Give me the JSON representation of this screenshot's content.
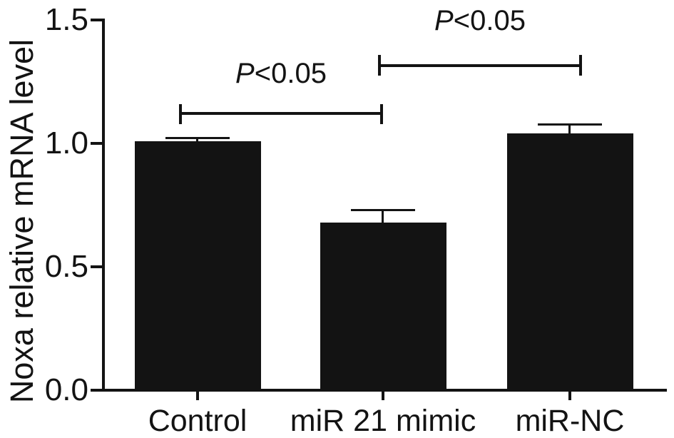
{
  "figure": {
    "background": "#ffffff",
    "ink_color": "#131313"
  },
  "chart_data": {
    "type": "bar",
    "title": "",
    "categories": [
      "Control",
      "miR 21 mimic",
      "miR-NC"
    ],
    "values": [
      1.01,
      0.68,
      1.04
    ],
    "errors_upper": [
      0.015,
      0.055,
      0.04
    ],
    "xlabel": "",
    "ylabel": "Noxa relative mRNA level",
    "ylim": [
      0,
      1.5
    ],
    "ytick_labels": [
      "0.0",
      "0.5",
      "1.0",
      "1.5"
    ],
    "grid": false,
    "legend": "none",
    "bar_color": "#131313",
    "annotations": [
      {
        "pair": [
          "Control",
          "miR 21 mimic"
        ],
        "text": "P<0.05"
      },
      {
        "pair": [
          "miR 21 mimic",
          "miR-NC"
        ],
        "text": "P<0.05"
      }
    ]
  }
}
